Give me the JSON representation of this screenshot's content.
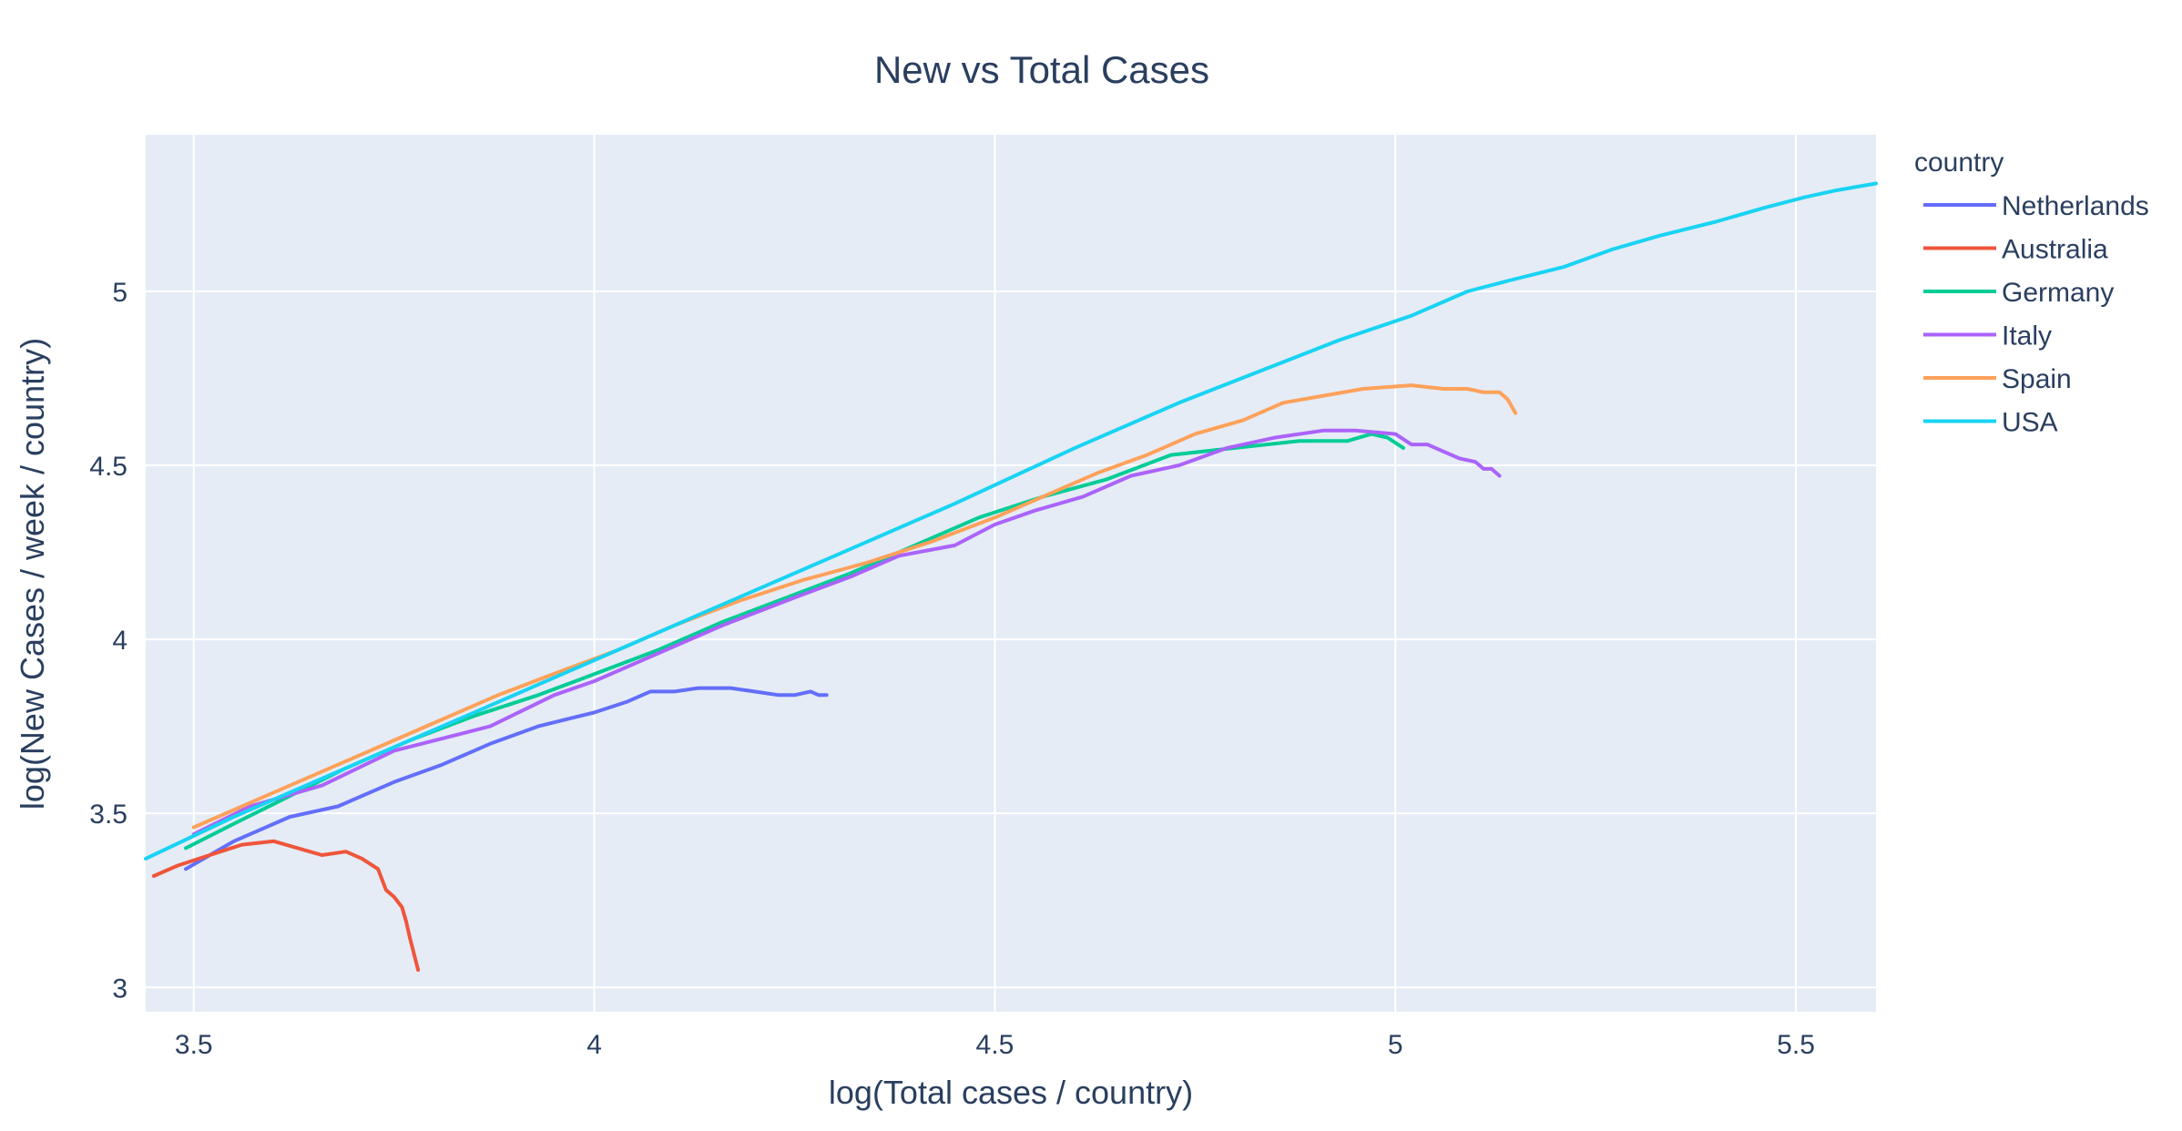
{
  "chart_data": {
    "type": "line",
    "title": "New vs Total Cases",
    "xlabel": "log(Total cases / country)",
    "ylabel": "log(New Cases / week / country)",
    "xlim": [
      3.44,
      5.6
    ],
    "ylim": [
      2.93,
      5.45
    ],
    "xticks": [
      3.5,
      4,
      4.5,
      5,
      5.5
    ],
    "xtick_labels": [
      "3.5",
      "4",
      "4.5",
      "5",
      "5.5"
    ],
    "yticks": [
      3,
      3.5,
      4,
      4.5,
      5
    ],
    "ytick_labels": [
      "3",
      "3.5",
      "4",
      "4.5",
      "5"
    ],
    "grid": true,
    "legend_title": "country",
    "legend_position": "right",
    "series": [
      {
        "name": "Netherlands",
        "color": "#636efa",
        "x": [
          3.49,
          3.55,
          3.62,
          3.68,
          3.75,
          3.81,
          3.87,
          3.93,
          4.0,
          4.04,
          4.07,
          4.1,
          4.13,
          4.17,
          4.2,
          4.23,
          4.25,
          4.27,
          4.28,
          4.29
        ],
        "y": [
          3.34,
          3.42,
          3.49,
          3.52,
          3.59,
          3.64,
          3.7,
          3.75,
          3.79,
          3.82,
          3.85,
          3.85,
          3.86,
          3.86,
          3.85,
          3.84,
          3.84,
          3.85,
          3.84,
          3.84
        ]
      },
      {
        "name": "Australia",
        "color": "#ef553b",
        "x": [
          3.45,
          3.48,
          3.52,
          3.56,
          3.6,
          3.63,
          3.66,
          3.69,
          3.71,
          3.73,
          3.74,
          3.75,
          3.76,
          3.765,
          3.77,
          3.78
        ],
        "y": [
          3.32,
          3.35,
          3.38,
          3.41,
          3.42,
          3.4,
          3.38,
          3.39,
          3.37,
          3.34,
          3.28,
          3.26,
          3.23,
          3.19,
          3.14,
          3.05
        ]
      },
      {
        "name": "Germany",
        "color": "#00cc96",
        "x": [
          3.49,
          3.55,
          3.62,
          3.69,
          3.77,
          3.85,
          3.93,
          4.0,
          4.08,
          4.16,
          4.24,
          4.32,
          4.4,
          4.48,
          4.56,
          4.64,
          4.72,
          4.8,
          4.88,
          4.94,
          4.97,
          4.99,
          5.01
        ],
        "y": [
          3.4,
          3.47,
          3.55,
          3.63,
          3.71,
          3.78,
          3.84,
          3.9,
          3.97,
          4.05,
          4.12,
          4.19,
          4.27,
          4.35,
          4.41,
          4.46,
          4.53,
          4.55,
          4.57,
          4.57,
          4.59,
          4.58,
          4.55
        ]
      },
      {
        "name": "Italy",
        "color": "#ab63fa",
        "x": [
          3.5,
          3.57,
          3.66,
          3.75,
          3.87,
          3.95,
          4.0,
          4.07,
          4.16,
          4.25,
          4.32,
          4.38,
          4.45,
          4.5,
          4.55,
          4.61,
          4.67,
          4.73,
          4.79,
          4.85,
          4.91,
          4.95,
          5.0,
          5.02,
          5.04,
          5.06,
          5.08,
          5.1,
          5.11,
          5.12,
          5.13
        ],
        "y": [
          3.44,
          3.52,
          3.58,
          3.68,
          3.75,
          3.84,
          3.88,
          3.95,
          4.04,
          4.12,
          4.18,
          4.24,
          4.27,
          4.33,
          4.37,
          4.41,
          4.47,
          4.5,
          4.55,
          4.58,
          4.6,
          4.6,
          4.59,
          4.56,
          4.56,
          4.54,
          4.52,
          4.51,
          4.49,
          4.49,
          4.47
        ]
      },
      {
        "name": "Spain",
        "color": "#ffa15a",
        "x": [
          3.5,
          3.59,
          3.68,
          3.78,
          3.88,
          3.96,
          4.03,
          4.1,
          4.18,
          4.26,
          4.34,
          4.42,
          4.5,
          4.57,
          4.63,
          4.69,
          4.75,
          4.81,
          4.86,
          4.91,
          4.96,
          5.02,
          5.06,
          5.09,
          5.11,
          5.13,
          5.14,
          5.15
        ],
        "y": [
          3.46,
          3.55,
          3.64,
          3.74,
          3.84,
          3.91,
          3.97,
          4.04,
          4.11,
          4.17,
          4.22,
          4.28,
          4.35,
          4.42,
          4.48,
          4.53,
          4.59,
          4.63,
          4.68,
          4.7,
          4.72,
          4.73,
          4.72,
          4.72,
          4.71,
          4.71,
          4.69,
          4.65
        ]
      },
      {
        "name": "USA",
        "color": "#19d3f3",
        "x": [
          3.44,
          3.55,
          3.7,
          3.85,
          4.0,
          4.15,
          4.3,
          4.45,
          4.6,
          4.73,
          4.83,
          4.93,
          5.02,
          5.09,
          5.14,
          5.21,
          5.27,
          5.33,
          5.4,
          5.46,
          5.51,
          5.55,
          5.6
        ],
        "y": [
          3.37,
          3.49,
          3.64,
          3.79,
          3.94,
          4.09,
          4.24,
          4.39,
          4.55,
          4.68,
          4.77,
          4.86,
          4.93,
          5.0,
          5.03,
          5.07,
          5.12,
          5.16,
          5.2,
          5.24,
          5.27,
          5.29,
          5.31
        ]
      }
    ]
  }
}
